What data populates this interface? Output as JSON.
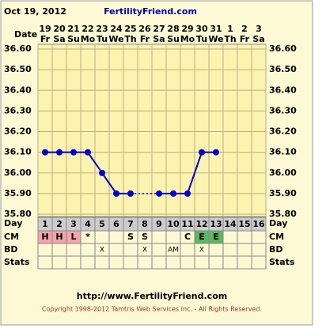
{
  "header": {
    "date": "Oct 19, 2012",
    "site": "FertilityFriend.com"
  },
  "chart_data": {
    "type": "line",
    "row_labels": {
      "date": "Date",
      "day": "Day",
      "cm": "CM",
      "bd": "BD",
      "stats": "Stats"
    },
    "dates": [
      "19",
      "20",
      "21",
      "22",
      "23",
      "24",
      "25",
      "26",
      "27",
      "28",
      "29",
      "30",
      "31",
      "1",
      "2",
      "3"
    ],
    "weekdays": [
      "Fr",
      "Sa",
      "Su",
      "Mo",
      "Tu",
      "We",
      "Th",
      "Fr",
      "Sa",
      "Su",
      "Mo",
      "Tu",
      "We",
      "Th",
      "Fr",
      "Sa"
    ],
    "categories": [
      1,
      2,
      3,
      4,
      5,
      6,
      7,
      8,
      9,
      10,
      11,
      12,
      13,
      14,
      15,
      16
    ],
    "values": [
      36.1,
      36.1,
      36.1,
      36.1,
      36.0,
      35.9,
      35.9,
      null,
      35.9,
      35.9,
      35.9,
      36.1,
      36.1,
      null,
      null,
      null
    ],
    "color": "#0000cc",
    "ylim": [
      35.8,
      36.6
    ],
    "yticks": [
      {
        "value": 35.8,
        "label": "35.80"
      },
      {
        "value": 35.9,
        "label": "35.90"
      },
      {
        "value": 36.0,
        "label": "36.00"
      },
      {
        "value": 36.1,
        "label": "36.10"
      },
      {
        "value": 36.2,
        "label": "36.20"
      },
      {
        "value": 36.3,
        "label": "36.30"
      },
      {
        "value": 36.4,
        "label": "36.40"
      },
      {
        "value": 36.5,
        "label": "36.50"
      },
      {
        "value": 36.6,
        "label": "36.60"
      }
    ],
    "grid": true,
    "cm": [
      "H",
      "H",
      "L",
      "*",
      null,
      null,
      "S",
      "S",
      null,
      null,
      "C",
      "E",
      "E",
      null,
      null,
      null
    ],
    "cm_colors": {
      "H": "#f4a4ac",
      "L": "#f4a4ac",
      "E": "#5cb860"
    },
    "bd": [
      null,
      null,
      null,
      null,
      "X",
      null,
      null,
      "X",
      null,
      "AM",
      null,
      "X",
      null,
      null,
      null,
      null
    ]
  },
  "footer": {
    "url": "http://www.FertilityFriend.com",
    "copyright": "Copyright 1998-2012 Tamtris Web Services Inc. - All Rights Reserved."
  }
}
